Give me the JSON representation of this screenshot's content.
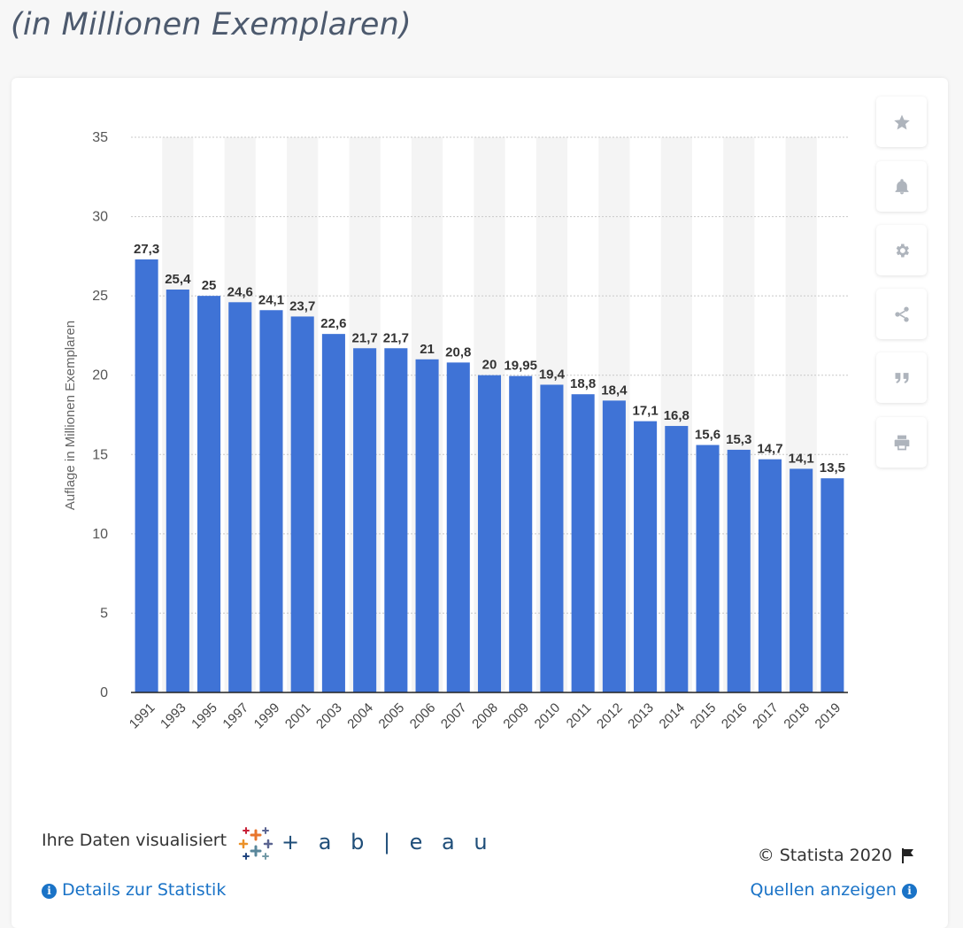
{
  "header": {
    "title": "(in Millionen Exemplaren)"
  },
  "chart_data": {
    "type": "bar",
    "categories": [
      "1991",
      "1993",
      "1995",
      "1997",
      "1999",
      "2001",
      "2003",
      "2004",
      "2005",
      "2006",
      "2007",
      "2008",
      "2009",
      "2010",
      "2011",
      "2012",
      "2013",
      "2014",
      "2015",
      "2016",
      "2017",
      "2018",
      "2019"
    ],
    "values": [
      27.3,
      25.4,
      25,
      24.6,
      24.1,
      23.7,
      22.6,
      21.7,
      21.7,
      21,
      20.8,
      20,
      19.95,
      19.4,
      18.8,
      18.4,
      17.1,
      16.8,
      15.6,
      15.3,
      14.7,
      14.1,
      13.5
    ],
    "value_labels": [
      "27,3",
      "25,4",
      "25",
      "24,6",
      "24,1",
      "23,7",
      "22,6",
      "21,7",
      "21,7",
      "21",
      "20,8",
      "20",
      "19,95",
      "19,4",
      "18,8",
      "18,4",
      "17,1",
      "16,8",
      "15,6",
      "15,3",
      "14,7",
      "14,1",
      "13,5"
    ],
    "ylabel": "Auflage in Millionen Exemplaren",
    "xlabel": "",
    "ylim": [
      0,
      35
    ],
    "yticks": [
      "0",
      "5",
      "10",
      "15",
      "20",
      "25",
      "30",
      "35"
    ],
    "grid": true,
    "bar_color": "#3f73d6"
  },
  "toolbar": {
    "buttons": [
      {
        "name": "favorite-button",
        "icon": "star-icon"
      },
      {
        "name": "notify-button",
        "icon": "bell-icon"
      },
      {
        "name": "settings-button",
        "icon": "gear-icon"
      },
      {
        "name": "share-button",
        "icon": "share-icon"
      },
      {
        "name": "cite-button",
        "icon": "quote-icon"
      },
      {
        "name": "print-button",
        "icon": "print-icon"
      }
    ]
  },
  "footer": {
    "visualized_label": "Ihre Daten visualisiert",
    "tableau_label": "+ a b | e a u",
    "copyright": "© Statista 2020",
    "details_link": "Details zur Statistik",
    "sources_link": "Quellen anzeigen",
    "info_glyph": "i"
  }
}
